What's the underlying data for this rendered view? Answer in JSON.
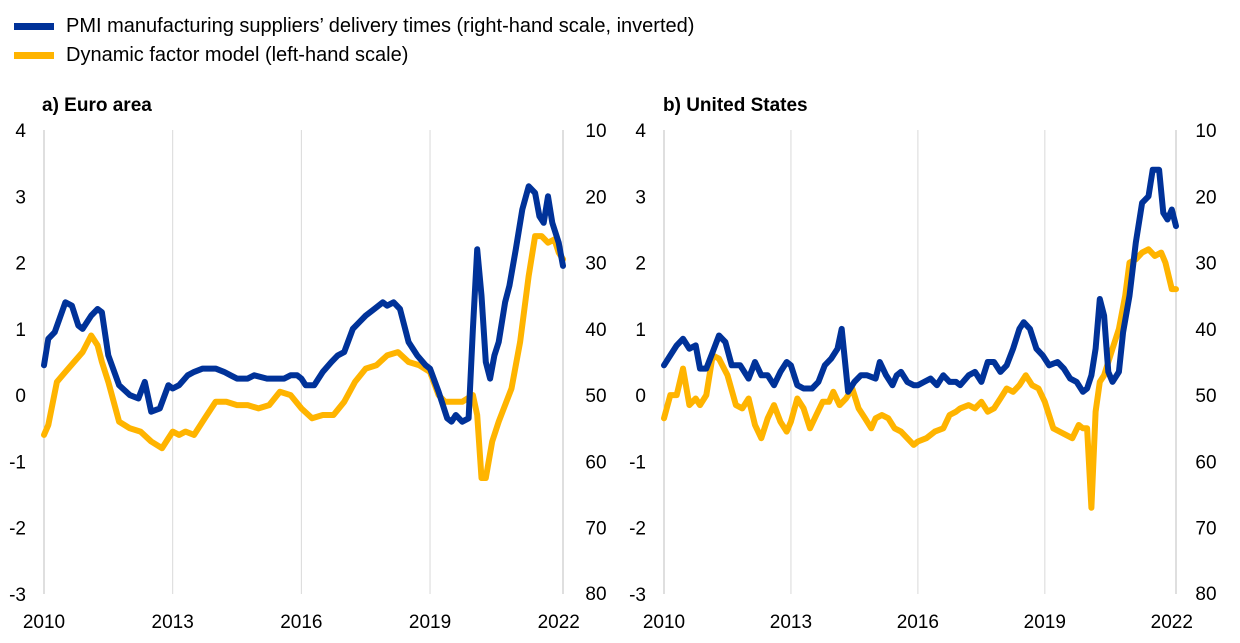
{
  "legend": [
    {
      "label": "PMI manufacturing suppliers’ delivery times (right-hand scale, inverted)",
      "color": "#003299"
    },
    {
      "label": "Dynamic factor model (left-hand scale)",
      "color": "#FFB400"
    }
  ],
  "chart_data": [
    {
      "type": "line",
      "title": "a) Euro area",
      "x_ticks": [
        "2010",
        "2013",
        "2016",
        "2019",
        "2022"
      ],
      "x_range": [
        2010.0,
        2022.1
      ],
      "y_left_range": [
        -3,
        4
      ],
      "y_left_ticks": [
        "4",
        "3",
        "2",
        "1",
        "0",
        "-1",
        "-2",
        "-3"
      ],
      "y_right_range": [
        80,
        10
      ],
      "y_right_inverted": true,
      "y_right_ticks": [
        "10",
        "20",
        "30",
        "40",
        "50",
        "60",
        "70",
        "80"
      ],
      "grid": "vertical",
      "series": [
        {
          "name": "PMI manufacturing suppliers’ delivery times (right-hand scale, inverted)",
          "axis": "right",
          "color": "#003299",
          "x": [
            2010.0,
            2010.1,
            2010.25,
            2010.5,
            2010.65,
            2010.8,
            2010.9,
            2011.0,
            2011.1,
            2011.25,
            2011.35,
            2011.5,
            2011.75,
            2012.0,
            2012.2,
            2012.35,
            2012.5,
            2012.7,
            2012.9,
            2013.0,
            2013.15,
            2013.35,
            2013.5,
            2013.7,
            2013.85,
            2014.0,
            2014.2,
            2014.35,
            2014.5,
            2014.75,
            2014.9,
            2015.2,
            2015.4,
            2015.6,
            2015.75,
            2015.9,
            2016.0,
            2016.1,
            2016.3,
            2016.5,
            2016.7,
            2016.85,
            2017.0,
            2017.2,
            2017.35,
            2017.5,
            2017.7,
            2017.9,
            2018.0,
            2018.15,
            2018.3,
            2018.5,
            2018.7,
            2018.9,
            2019.0,
            2019.2,
            2019.4,
            2019.5,
            2019.6,
            2019.75,
            2019.9,
            2020.0,
            2020.1,
            2020.2,
            2020.3,
            2020.4,
            2020.5,
            2020.6,
            2020.75,
            2020.85,
            2021.0,
            2021.15,
            2021.3,
            2021.45,
            2021.55,
            2021.65,
            2021.75,
            2021.85,
            2022.0,
            2022.1
          ],
          "values": [
            45.5,
            41.5,
            40.5,
            36,
            36.5,
            39.5,
            40,
            39,
            38,
            37,
            37.5,
            44,
            48.5,
            50,
            50.5,
            48,
            52.5,
            52,
            48.5,
            49,
            48.5,
            47,
            46.5,
            46,
            46,
            46,
            46.5,
            47,
            47.5,
            47.5,
            47,
            47.5,
            47.5,
            47.5,
            47,
            47,
            47.5,
            48.5,
            48.5,
            46.5,
            45,
            44,
            43.5,
            40,
            39,
            38,
            37,
            36,
            36.5,
            36,
            37,
            42,
            44,
            45.5,
            46,
            49.5,
            53.5,
            54,
            53,
            54,
            53.5,
            40,
            28,
            35,
            45,
            47.5,
            44,
            42,
            36,
            33.5,
            28,
            22,
            18.5,
            19.5,
            23,
            24,
            20,
            24,
            27,
            30.5
          ]
        },
        {
          "name": "Dynamic factor model (left-hand scale)",
          "axis": "left",
          "color": "#FFB400",
          "x": [
            2010.0,
            2010.1,
            2010.3,
            2010.5,
            2010.7,
            2010.9,
            2011.1,
            2011.25,
            2011.35,
            2011.5,
            2011.75,
            2012.0,
            2012.25,
            2012.5,
            2012.75,
            2012.9,
            2013.0,
            2013.15,
            2013.3,
            2013.5,
            2013.75,
            2014.0,
            2014.25,
            2014.5,
            2014.75,
            2015.0,
            2015.25,
            2015.5,
            2015.75,
            2016.0,
            2016.25,
            2016.5,
            2016.75,
            2017.0,
            2017.25,
            2017.5,
            2017.75,
            2018.0,
            2018.25,
            2018.5,
            2018.75,
            2019.0,
            2019.2,
            2019.35,
            2019.5,
            2019.75,
            2020.0,
            2020.1,
            2020.2,
            2020.3,
            2020.45,
            2020.6,
            2020.75,
            2020.9,
            2021.1,
            2021.3,
            2021.45,
            2021.6,
            2021.75,
            2021.9,
            2022.0,
            2022.1
          ],
          "values": [
            -0.6,
            -0.45,
            0.2,
            0.35,
            0.5,
            0.65,
            0.9,
            0.75,
            0.5,
            0.2,
            -0.4,
            -0.5,
            -0.55,
            -0.7,
            -0.8,
            -0.65,
            -0.55,
            -0.6,
            -0.55,
            -0.6,
            -0.35,
            -0.1,
            -0.1,
            -0.15,
            -0.15,
            -0.2,
            -0.15,
            0.05,
            0.0,
            -0.2,
            -0.35,
            -0.3,
            -0.3,
            -0.1,
            0.2,
            0.4,
            0.45,
            0.6,
            0.65,
            0.5,
            0.45,
            0.35,
            0.0,
            -0.1,
            -0.1,
            -0.1,
            0.0,
            -0.3,
            -1.25,
            -1.25,
            -0.7,
            -0.4,
            -0.15,
            0.1,
            0.8,
            1.8,
            2.4,
            2.4,
            2.3,
            2.35,
            2.15,
            2.05
          ]
        }
      ]
    },
    {
      "type": "line",
      "title": "b) United States",
      "x_ticks": [
        "2010",
        "2013",
        "2016",
        "2019",
        "2022"
      ],
      "x_range": [
        2010.0,
        2022.1
      ],
      "y_left_range": [
        -3,
        4
      ],
      "y_left_ticks": [
        "4",
        "3",
        "2",
        "1",
        "0",
        "-1",
        "-2",
        "-3"
      ],
      "y_right_range": [
        80,
        10
      ],
      "y_right_inverted": true,
      "y_right_ticks": [
        "10",
        "20",
        "30",
        "40",
        "50",
        "60",
        "70",
        "80"
      ],
      "grid": "vertical",
      "series": [
        {
          "name": "PMI manufacturing suppliers’ delivery times (right-hand scale, inverted)",
          "axis": "right",
          "color": "#003299",
          "x": [
            2010.0,
            2010.15,
            2010.3,
            2010.45,
            2010.6,
            2010.75,
            2010.85,
            2011.0,
            2011.15,
            2011.3,
            2011.45,
            2011.6,
            2011.8,
            2012.0,
            2012.15,
            2012.3,
            2012.45,
            2012.6,
            2012.75,
            2012.9,
            2013.0,
            2013.15,
            2013.3,
            2013.5,
            2013.65,
            2013.8,
            2013.95,
            2014.1,
            2014.2,
            2014.35,
            2014.5,
            2014.65,
            2014.8,
            2015.0,
            2015.1,
            2015.25,
            2015.4,
            2015.5,
            2015.6,
            2015.75,
            2015.9,
            2016.0,
            2016.15,
            2016.3,
            2016.45,
            2016.6,
            2016.75,
            2016.9,
            2017.0,
            2017.2,
            2017.35,
            2017.5,
            2017.65,
            2017.8,
            2017.95,
            2018.1,
            2018.25,
            2018.4,
            2018.5,
            2018.65,
            2018.8,
            2018.95,
            2019.1,
            2019.3,
            2019.45,
            2019.6,
            2019.75,
            2019.9,
            2020.0,
            2020.1,
            2020.2,
            2020.3,
            2020.4,
            2020.5,
            2020.6,
            2020.75,
            2020.85,
            2021.0,
            2021.15,
            2021.3,
            2021.45,
            2021.55,
            2021.7,
            2021.8,
            2021.9,
            2022.0,
            2022.1
          ],
          "values": [
            45.5,
            44,
            42.5,
            41.5,
            43,
            42.5,
            46,
            46,
            43.5,
            41,
            42,
            45.5,
            45.5,
            47.5,
            45,
            47,
            47,
            48.5,
            46.5,
            45,
            45.5,
            48.5,
            49,
            49,
            48,
            45.5,
            44.5,
            43,
            40,
            49.5,
            48,
            47,
            47,
            47.5,
            45,
            47,
            48.5,
            47,
            46.5,
            48,
            48.5,
            48.5,
            48,
            47.5,
            48.5,
            47,
            48,
            48,
            48.5,
            47,
            46.5,
            48,
            45,
            45,
            46.5,
            45.5,
            43,
            40,
            39,
            40,
            43,
            44,
            45.5,
            45,
            46,
            47.5,
            48,
            49.5,
            49,
            47,
            43,
            35.5,
            38,
            46.5,
            48,
            46.5,
            40.5,
            35,
            27,
            21,
            20,
            16,
            16,
            22.5,
            23.5,
            22,
            24.5
          ]
        },
        {
          "name": "Dynamic factor model (left-hand scale)",
          "axis": "left",
          "color": "#FFB400",
          "x": [
            2010.0,
            2010.15,
            2010.3,
            2010.45,
            2010.6,
            2010.75,
            2010.85,
            2011.0,
            2011.15,
            2011.3,
            2011.5,
            2011.7,
            2011.85,
            2012.0,
            2012.15,
            2012.3,
            2012.45,
            2012.6,
            2012.75,
            2012.9,
            2013.0,
            2013.15,
            2013.3,
            2013.45,
            2013.6,
            2013.75,
            2013.9,
            2014.0,
            2014.15,
            2014.3,
            2014.45,
            2014.6,
            2014.75,
            2014.9,
            2015.0,
            2015.15,
            2015.3,
            2015.45,
            2015.6,
            2015.75,
            2015.9,
            2016.0,
            2016.2,
            2016.4,
            2016.6,
            2016.75,
            2016.9,
            2017.0,
            2017.2,
            2017.35,
            2017.5,
            2017.65,
            2017.8,
            2017.95,
            2018.1,
            2018.25,
            2018.4,
            2018.55,
            2018.7,
            2018.85,
            2019.0,
            2019.2,
            2019.35,
            2019.5,
            2019.65,
            2019.8,
            2019.9,
            2020.0,
            2020.1,
            2020.2,
            2020.3,
            2020.4,
            2020.6,
            2020.75,
            2020.9,
            2021.0,
            2021.15,
            2021.3,
            2021.45,
            2021.6,
            2021.75,
            2021.85,
            2022.0,
            2022.1
          ],
          "values": [
            -0.35,
            0.0,
            0.0,
            0.4,
            -0.15,
            -0.05,
            -0.15,
            0.0,
            0.6,
            0.55,
            0.3,
            -0.15,
            -0.2,
            -0.05,
            -0.45,
            -0.65,
            -0.35,
            -0.15,
            -0.4,
            -0.55,
            -0.4,
            -0.05,
            -0.2,
            -0.5,
            -0.3,
            -0.1,
            -0.1,
            0.05,
            -0.15,
            -0.05,
            0.1,
            -0.2,
            -0.35,
            -0.5,
            -0.35,
            -0.3,
            -0.35,
            -0.5,
            -0.55,
            -0.65,
            -0.75,
            -0.7,
            -0.65,
            -0.55,
            -0.5,
            -0.3,
            -0.25,
            -0.2,
            -0.15,
            -0.2,
            -0.1,
            -0.25,
            -0.2,
            -0.05,
            0.1,
            0.05,
            0.15,
            0.3,
            0.15,
            0.1,
            -0.1,
            -0.5,
            -0.55,
            -0.6,
            -0.65,
            -0.45,
            -0.5,
            -0.5,
            -1.7,
            -0.25,
            0.2,
            0.3,
            0.7,
            1.0,
            1.5,
            2.0,
            2.05,
            2.15,
            2.2,
            2.1,
            2.15,
            2.0,
            1.6,
            1.6
          ]
        }
      ]
    }
  ]
}
